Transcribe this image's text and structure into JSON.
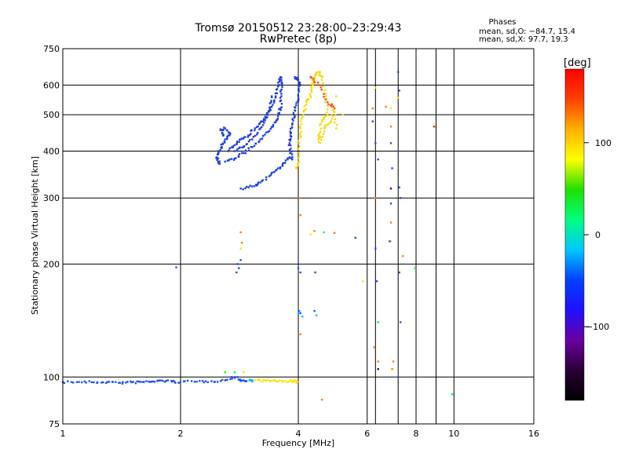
{
  "header": {
    "title": "Tromsø 20150512 23:28:00–23:29:43",
    "subtitle": "RwPretec (8p)",
    "stats_title": "Phases",
    "stats_o": "mean, sd,O: −84.7, 15.4",
    "stats_x": "mean, sd,X:  97.7, 19.3"
  },
  "chart_data": {
    "type": "scatter",
    "xlabel": "Frequency [MHz]",
    "ylabel": "Stationary phase Virtual Height [km]",
    "xscale": "log",
    "yscale": "log",
    "xlim": [
      1,
      16
    ],
    "ylim": [
      75,
      750
    ],
    "xticks": [
      1,
      2,
      4,
      6,
      8,
      10,
      16
    ],
    "yticks": [
      75,
      100,
      200,
      300,
      400,
      500,
      600,
      750
    ],
    "x_minor_gridlines": [
      6.3,
      7.2,
      9
    ],
    "grid": true,
    "colorbar": {
      "label": "[deg]",
      "range": [
        -180,
        180
      ],
      "ticks": [
        100,
        0,
        -100
      ],
      "colormap": [
        "#000000",
        "#2a0035",
        "#6a00a0",
        "#2010ff",
        "#0040ff",
        "#00c8ff",
        "#00ff80",
        "#20e000",
        "#ffff00",
        "#ffb000",
        "#ff4000",
        "#ff0000"
      ]
    },
    "series": [
      {
        "color": "#2050ff",
        "points": [
          [
            1.0,
            97
          ],
          [
            1.1,
            97
          ],
          [
            1.2,
            96.8
          ],
          [
            1.3,
            97
          ],
          [
            1.4,
            96.5
          ],
          [
            1.5,
            96.8
          ],
          [
            1.6,
            97
          ],
          [
            1.7,
            97.3
          ],
          [
            1.8,
            97.8
          ],
          [
            1.9,
            97.2
          ],
          [
            2.0,
            97
          ],
          [
            2.2,
            97.2
          ],
          [
            2.4,
            97.5
          ],
          [
            2.6,
            98
          ],
          [
            2.75,
            100
          ],
          [
            2.85,
            98
          ],
          [
            2.95,
            97.5
          ]
        ]
      },
      {
        "color": "#00b4ff",
        "points": [
          [
            3.0,
            98
          ],
          [
            3.05,
            98
          ]
        ]
      },
      {
        "color": "#ffe000",
        "points": [
          [
            3.1,
            98
          ],
          [
            3.3,
            97.8
          ],
          [
            3.5,
            97.5
          ],
          [
            3.7,
            97.5
          ],
          [
            3.9,
            97.5
          ],
          [
            3.98,
            97
          ]
        ]
      },
      {
        "color": "#2040e0",
        "points": [
          [
            2.52,
            370
          ],
          [
            2.48,
            380
          ],
          [
            2.5,
            395
          ],
          [
            2.55,
            410
          ],
          [
            2.6,
            430
          ],
          [
            2.68,
            445
          ],
          [
            2.6,
            460
          ],
          [
            2.53,
            455
          ],
          [
            2.57,
            440
          ]
        ]
      },
      {
        "color": "#2040e0",
        "points": [
          [
            2.6,
            375
          ],
          [
            2.75,
            382
          ],
          [
            2.9,
            395
          ],
          [
            3.05,
            410
          ],
          [
            3.2,
            430
          ],
          [
            3.35,
            450
          ],
          [
            3.45,
            470
          ],
          [
            3.55,
            495
          ],
          [
            3.6,
            520
          ],
          [
            3.62,
            560
          ],
          [
            3.63,
            600
          ],
          [
            3.6,
            630
          ],
          [
            3.57,
            600
          ],
          [
            3.5,
            560
          ],
          [
            3.42,
            525
          ],
          [
            3.32,
            500
          ],
          [
            3.22,
            480
          ],
          [
            3.1,
            460
          ],
          [
            2.98,
            440
          ],
          [
            2.85,
            430
          ],
          [
            2.75,
            415
          ],
          [
            2.65,
            400
          ]
        ]
      },
      {
        "color": "#2040e0",
        "points": [
          [
            2.75,
            400
          ],
          [
            2.9,
            410
          ],
          [
            3.05,
            430
          ],
          [
            3.2,
            460
          ],
          [
            3.3,
            490
          ],
          [
            3.38,
            520
          ],
          [
            3.42,
            560
          ]
        ]
      },
      {
        "color": "#2040e0",
        "points": [
          [
            2.85,
            318
          ],
          [
            3.05,
            322
          ],
          [
            3.2,
            330
          ],
          [
            3.4,
            345
          ],
          [
            3.55,
            360
          ],
          [
            3.7,
            372
          ],
          [
            3.8,
            385
          ]
        ]
      },
      {
        "color": "#2040e0",
        "points": [
          [
            3.86,
            380
          ],
          [
            3.82,
            395
          ],
          [
            3.8,
            420
          ],
          [
            3.82,
            445
          ],
          [
            3.86,
            470
          ],
          [
            3.9,
            500
          ],
          [
            3.95,
            530
          ],
          [
            4.0,
            560
          ],
          [
            4.05,
            600
          ],
          [
            4.0,
            620
          ],
          [
            3.92,
            630
          ]
        ]
      },
      {
        "color": "#ffd800",
        "points": [
          [
            3.95,
            360
          ],
          [
            4.0,
            375
          ],
          [
            4.02,
            420
          ],
          [
            4.05,
            460
          ],
          [
            4.12,
            500
          ],
          [
            4.2,
            540
          ],
          [
            4.3,
            560
          ],
          [
            4.35,
            600
          ],
          [
            4.4,
            630
          ],
          [
            4.5,
            650
          ],
          [
            4.6,
            630
          ],
          [
            4.7,
            560
          ],
          [
            4.75,
            500
          ],
          [
            4.6,
            480
          ],
          [
            4.5,
            440
          ],
          [
            4.55,
            420
          ],
          [
            4.65,
            460
          ],
          [
            4.85,
            480
          ],
          [
            4.95,
            520
          ],
          [
            5.0,
            460
          ]
        ]
      },
      {
        "color": "#ff5000",
        "points": [
          [
            4.3,
            630
          ],
          [
            4.5,
            600
          ],
          [
            4.75,
            540
          ],
          [
            4.95,
            520
          ]
        ]
      },
      {
        "color": "#2050ff",
        "points": [
          [
            4.0,
            195
          ],
          [
            4.05,
            190
          ],
          [
            4.02,
            150
          ],
          [
            4.05,
            148
          ],
          [
            4.4,
            150
          ],
          [
            4.42,
            190
          ],
          [
            1.95,
            196
          ]
        ]
      },
      {
        "color": "#00c8ff",
        "points": [
          [
            4.0,
            148
          ],
          [
            4.1,
            145
          ],
          [
            4.45,
            146
          ]
        ]
      },
      {
        "color": "#2050ff",
        "points": [
          [
            2.78,
            190
          ],
          [
            2.8,
            200
          ],
          [
            2.85,
            205
          ],
          [
            2.82,
            195
          ]
        ]
      },
      {
        "color": "#ff8000",
        "points": [
          [
            2.85,
            243
          ],
          [
            2.87,
            228
          ],
          [
            4.05,
            270
          ],
          [
            4.02,
            300
          ],
          [
            4.05,
            130
          ],
          [
            4.4,
            245
          ],
          [
            4.95,
            242
          ],
          [
            6.2,
            520
          ],
          [
            6.9,
            465
          ],
          [
            6.9,
            258
          ],
          [
            7.4,
            210
          ],
          [
            7.0,
            110
          ],
          [
            6.4,
            110
          ],
          [
            6.3,
            300
          ],
          [
            6.25,
            120
          ],
          [
            4.6,
            87
          ],
          [
            6.7,
            525
          ],
          [
            6.95,
            105
          ]
        ]
      },
      {
        "color": "#00ff40",
        "points": [
          [
            2.6,
            103
          ],
          [
            2.75,
            103
          ],
          [
            4.65,
            243
          ],
          [
            6.4,
            140
          ],
          [
            7.95,
            195
          ],
          [
            9.9,
            90
          ]
        ]
      },
      {
        "color": "#ffe000",
        "points": [
          [
            2.9,
            103
          ],
          [
            2.85,
            220
          ],
          [
            4.3,
            240
          ],
          [
            5.85,
            180
          ],
          [
            6.9,
            230
          ],
          [
            7.2,
            555
          ],
          [
            5.2,
            500
          ],
          [
            5.0,
            560
          ],
          [
            6.3,
            590
          ],
          [
            6.9,
            520
          ]
        ]
      },
      {
        "color": "#2050ff",
        "points": [
          [
            6.2,
            480
          ],
          [
            6.3,
            420
          ],
          [
            6.4,
            380
          ],
          [
            6.9,
            420
          ],
          [
            6.95,
            360
          ],
          [
            6.85,
            230
          ],
          [
            7.2,
            400
          ],
          [
            7.25,
            320
          ],
          [
            7.3,
            300
          ],
          [
            7.25,
            190
          ],
          [
            7.3,
            140
          ],
          [
            7.2,
            100
          ],
          [
            6.3,
            220
          ],
          [
            6.35,
            180
          ],
          [
            6.9,
            290
          ],
          [
            5.6,
            235
          ],
          [
            7.2,
            650
          ],
          [
            7.25,
            580
          ]
        ]
      },
      {
        "color": "#400080",
        "points": [
          [
            6.9,
            318
          ],
          [
            6.4,
            105
          ]
        ]
      },
      {
        "color": "#ff2000",
        "points": [
          [
            8.9,
            465
          ]
        ]
      }
    ]
  }
}
